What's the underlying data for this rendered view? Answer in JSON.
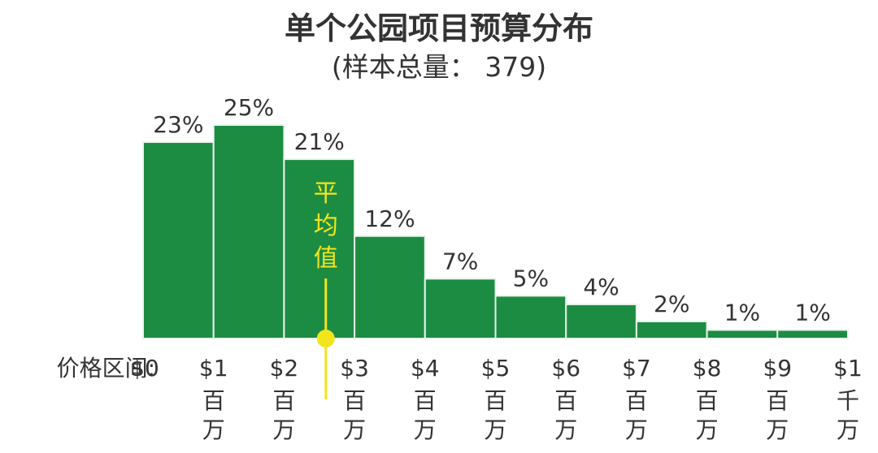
{
  "chart_data": {
    "type": "bar",
    "title": "单个公园项目预算分布",
    "subtitle": "(样本总量： 379)",
    "xlabel": "价格区间:",
    "x_ticks": [
      {
        "value": "$0",
        "unit": ""
      },
      {
        "value": "$1",
        "unit": "百万"
      },
      {
        "value": "$2",
        "unit": "百万"
      },
      {
        "value": "$3",
        "unit": "百万"
      },
      {
        "value": "$4",
        "unit": "百万"
      },
      {
        "value": "$5",
        "unit": "百万"
      },
      {
        "value": "$6",
        "unit": "百万"
      },
      {
        "value": "$7",
        "unit": "百万"
      },
      {
        "value": "$8",
        "unit": "百万"
      },
      {
        "value": "$9",
        "unit": "百万"
      },
      {
        "value": "$1",
        "unit": "千万"
      }
    ],
    "bin_edges_million": [
      0,
      1,
      2,
      3,
      4,
      5,
      6,
      7,
      8,
      9,
      10
    ],
    "values": [
      23,
      25,
      21,
      12,
      7,
      5,
      4,
      2,
      1,
      1
    ],
    "value_labels": [
      "23%",
      "25%",
      "21%",
      "12%",
      "7%",
      "5%",
      "4%",
      "2%",
      "1%",
      "1%"
    ],
    "ylim": [
      0,
      25
    ],
    "mean": {
      "label": "平均值",
      "value_million": 2.5
    },
    "colors": {
      "bar": "#1d8c43",
      "bar_edge": "#e8f5ec",
      "mean": "#f2e51e",
      "text": "#333333"
    },
    "grid": false,
    "legend": "none"
  }
}
